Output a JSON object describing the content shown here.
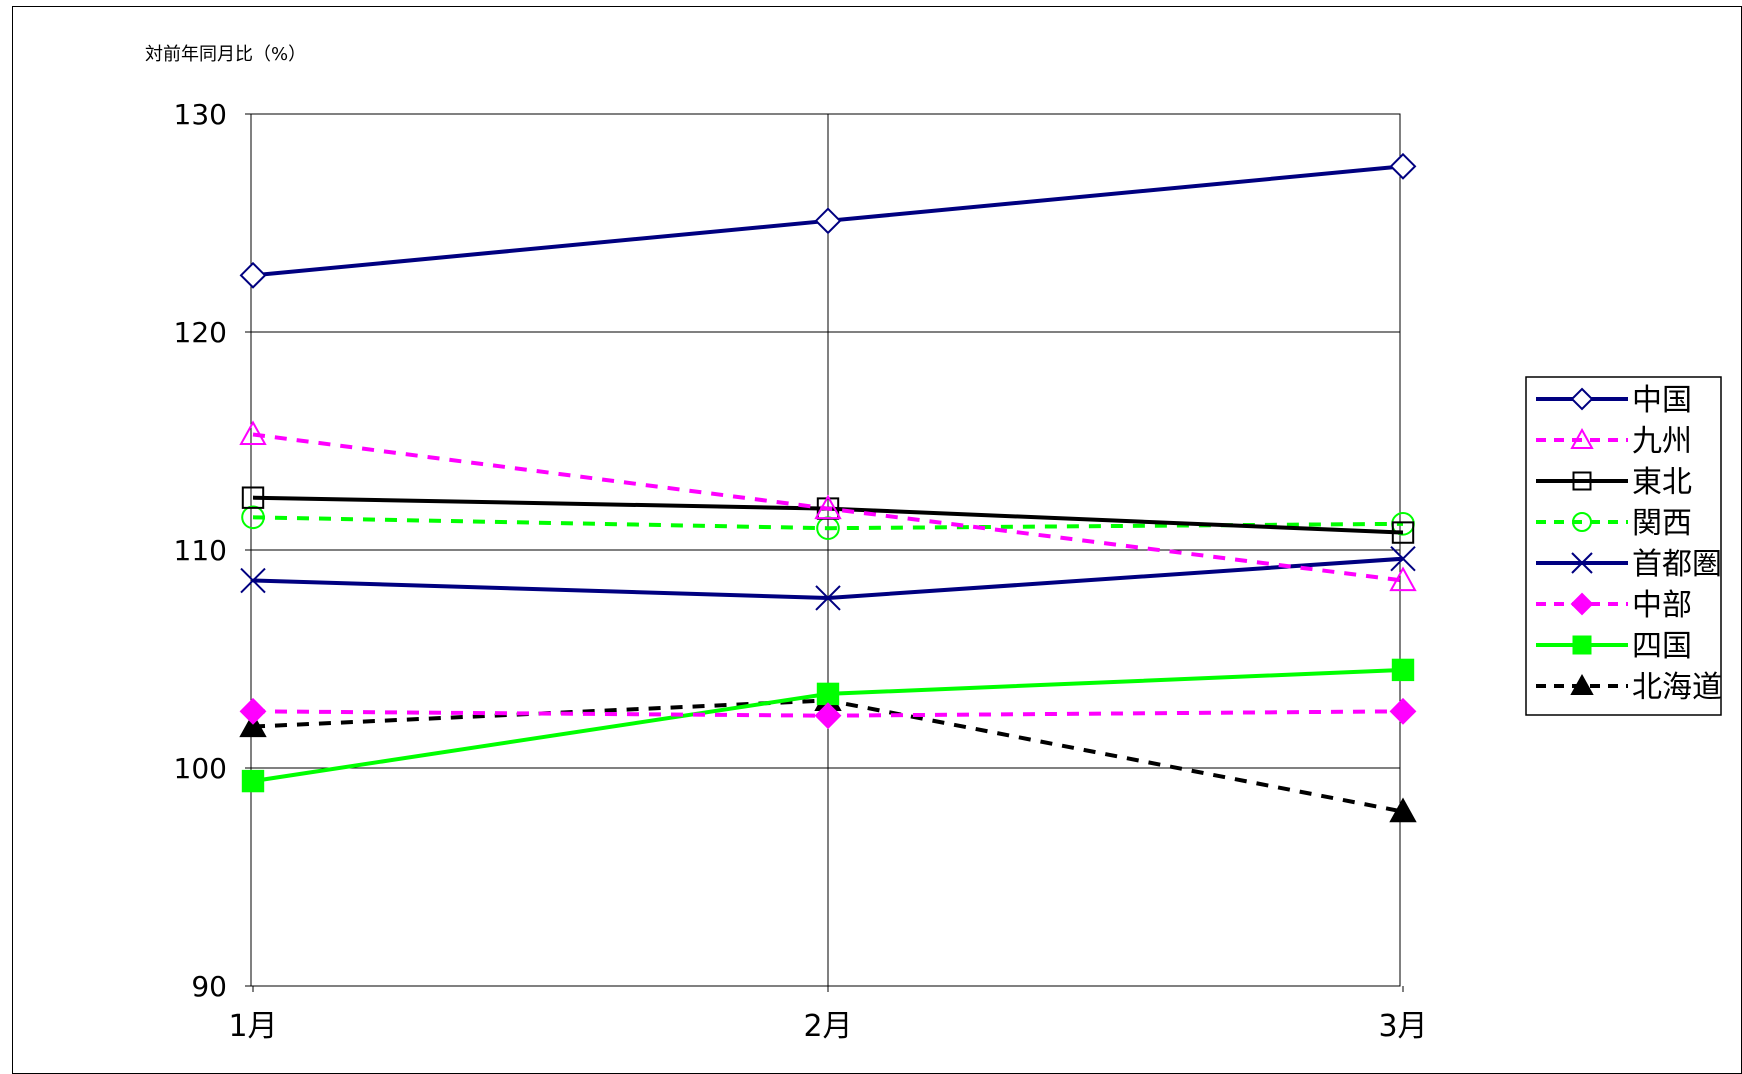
{
  "chart_data": {
    "type": "line",
    "title": "",
    "xlabel": "",
    "ylabel": "対前年同月比（%）",
    "categories": [
      "1月",
      "2月",
      "3月"
    ],
    "ylim": [
      90,
      130
    ],
    "yticks": [
      90,
      100,
      110,
      120,
      130
    ],
    "grid": true,
    "legend_position": "right",
    "series": [
      {
        "name": "中国",
        "values": [
          122.6,
          125.1,
          127.6
        ],
        "color": "#000080",
        "line_style": "solid",
        "marker": "diamond-open"
      },
      {
        "name": "九州",
        "values": [
          115.3,
          111.9,
          108.6
        ],
        "color": "#ff00ff",
        "line_style": "dashed",
        "marker": "triangle-open"
      },
      {
        "name": "東北",
        "values": [
          112.4,
          111.9,
          110.8
        ],
        "color": "#000000",
        "line_style": "solid",
        "marker": "square-open"
      },
      {
        "name": "関西",
        "values": [
          111.5,
          111.0,
          111.2
        ],
        "color": "#00ff00",
        "line_style": "dashed",
        "marker": "circle-open"
      },
      {
        "name": "首都圏",
        "values": [
          108.6,
          107.8,
          109.6
        ],
        "color": "#000080",
        "line_style": "solid",
        "marker": "x"
      },
      {
        "name": "中部",
        "values": [
          102.6,
          102.4,
          102.6
        ],
        "color": "#ff00ff",
        "line_style": "dashed",
        "marker": "diamond-filled"
      },
      {
        "name": "四国",
        "values": [
          99.4,
          103.4,
          104.5
        ],
        "color": "#00ff00",
        "line_style": "solid",
        "marker": "square-filled"
      },
      {
        "name": "北海道",
        "values": [
          101.9,
          103.1,
          98.0
        ],
        "color": "#000000",
        "line_style": "dashed",
        "marker": "triangle-filled"
      }
    ]
  }
}
